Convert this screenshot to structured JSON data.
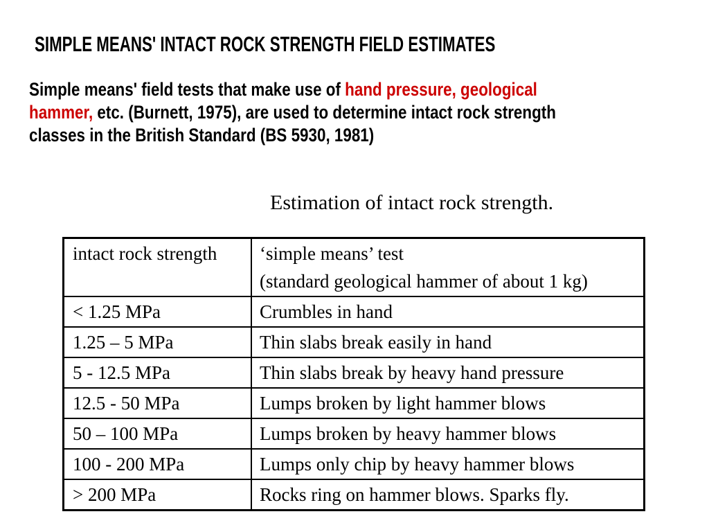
{
  "colors": {
    "black": "#000000",
    "red": "#cc0000",
    "border": "#000000",
    "background": "#ffffff"
  },
  "slide": {
    "title": "SIMPLE MEANS' INTACT ROCK STRENGTH FIELD ESTIMATES"
  },
  "paragraph": {
    "lines": [
      {
        "segments": [
          {
            "text": "Simple means' field tests that make use of ",
            "color": "black"
          },
          {
            "text": "hand pressure, geological",
            "color": "red"
          }
        ]
      },
      {
        "segments": [
          {
            "text": "hammer,",
            "color": "red"
          },
          {
            "text": " etc. (Burnett, 1975), are used to determine intact rock strength",
            "color": "black"
          }
        ]
      },
      {
        "segments": [
          {
            "text": "classes in the British Standard (BS 5930, 1981)",
            "color": "black"
          }
        ]
      }
    ]
  },
  "table": {
    "caption": "Estimation of intact rock strength.",
    "header": {
      "col1": "intact rock strength",
      "col2_line1": "‘simple means’ test",
      "col2_line2": "(standard geological hammer of about 1 kg)"
    },
    "rows": [
      {
        "strength": "< 1.25 MPa",
        "test": "Crumbles in hand"
      },
      {
        "strength": "1.25 – 5 MPa",
        "test": "Thin slabs break easily in hand"
      },
      {
        "strength": "5 - 12.5 MPa",
        "test": "Thin slabs break by heavy hand pressure"
      },
      {
        "strength": "12.5 - 50 MPa",
        "test": "Lumps broken by light hammer blows"
      },
      {
        "strength": "50 – 100 MPa",
        "test": "Lumps broken by heavy hammer blows"
      },
      {
        "strength": "100 - 200 MPa",
        "test": "Lumps only chip by heavy hammer blows"
      },
      {
        "strength": "> 200 MPa",
        "test": "Rocks ring on hammer blows. Sparks fly."
      }
    ]
  }
}
